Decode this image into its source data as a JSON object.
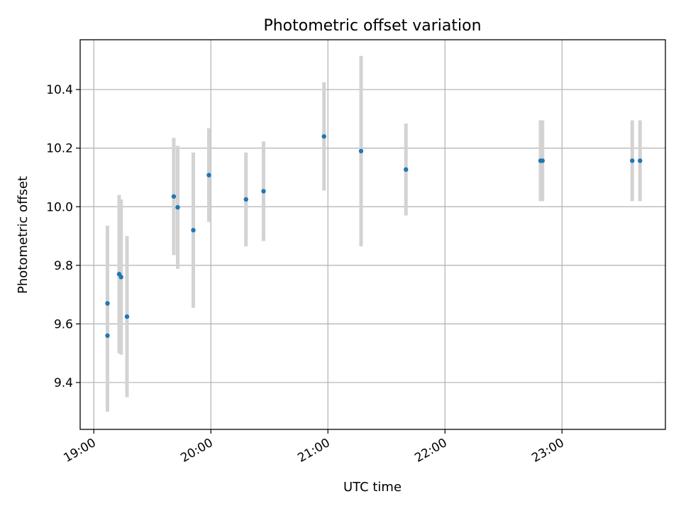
{
  "chart_data": {
    "type": "scatter",
    "title": "Photometric offset variation",
    "xlabel": "UTC time",
    "ylabel": "Photometric offset",
    "xlim": [
      "18:53",
      "23:53"
    ],
    "ylim": [
      9.24,
      10.57
    ],
    "xticks": [
      "19:00",
      "20:00",
      "21:00",
      "22:00",
      "23:00"
    ],
    "yticks": [
      9.4,
      9.6,
      9.8,
      10.0,
      10.2,
      10.4
    ],
    "grid": true,
    "colors": {
      "point": "#1f77b4",
      "errorbar": "#d3d3d3"
    },
    "series": [
      {
        "points": [
          {
            "x": "19:07",
            "y": 9.67,
            "err": 0.265
          },
          {
            "x": "19:07",
            "y": 9.56,
            "err": 0.26
          },
          {
            "x": "19:13",
            "y": 9.77,
            "err": 0.27
          },
          {
            "x": "19:14",
            "y": 9.76,
            "err": 0.265
          },
          {
            "x": "19:17",
            "y": 9.625,
            "err": 0.275
          },
          {
            "x": "19:41",
            "y": 10.035,
            "err": 0.2
          },
          {
            "x": "19:43",
            "y": 9.998,
            "err": 0.21
          },
          {
            "x": "19:51",
            "y": 9.92,
            "err": 0.265
          },
          {
            "x": "19:59",
            "y": 10.108,
            "err": 0.16
          },
          {
            "x": "20:18",
            "y": 10.025,
            "err": 0.16
          },
          {
            "x": "20:27",
            "y": 10.053,
            "err": 0.17
          },
          {
            "x": "20:58",
            "y": 10.24,
            "err": 0.185
          },
          {
            "x": "21:17",
            "y": 10.19,
            "err": 0.325
          },
          {
            "x": "21:40",
            "y": 10.127,
            "err": 0.157
          },
          {
            "x": "22:49",
            "y": 10.157,
            "err": 0.138
          },
          {
            "x": "22:50",
            "y": 10.157,
            "err": 0.138
          },
          {
            "x": "23:36",
            "y": 10.157,
            "err": 0.138
          },
          {
            "x": "23:40",
            "y": 10.157,
            "err": 0.138
          }
        ]
      }
    ]
  }
}
